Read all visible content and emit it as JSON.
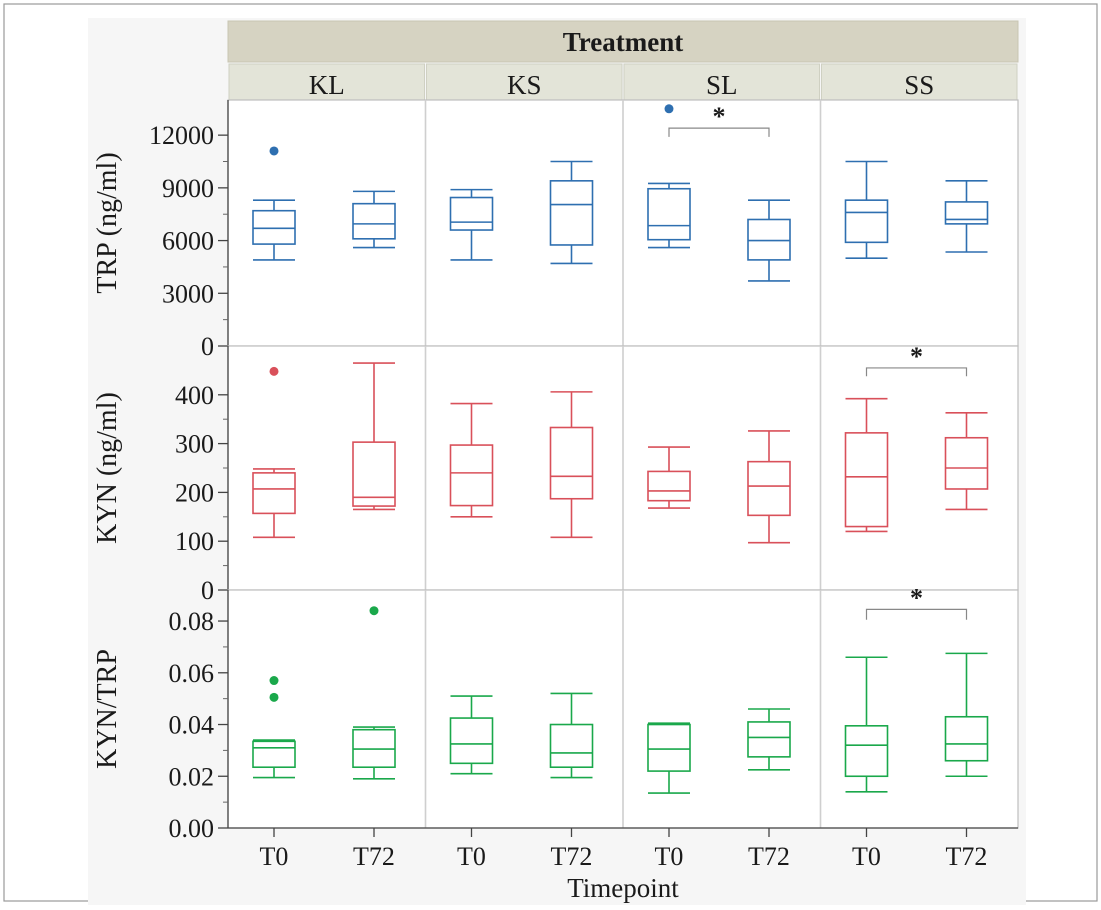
{
  "header": {
    "title": "Treatment"
  },
  "x_axis_title": "Timepoint",
  "colors": {
    "TRP": "#2e6fb0",
    "KYN": "#d9505a",
    "KYN/TRP": "#1aa84b"
  },
  "chart_data": {
    "type": "boxplot",
    "facet_label": "Treatment",
    "xlabel": "Timepoint",
    "treatments": [
      "KL",
      "KS",
      "SL",
      "SS"
    ],
    "timepoints": [
      "T0",
      "T72"
    ],
    "panels": [
      {
        "ylabel": "TRP (ng/ml)",
        "ylim": [
          0,
          14000
        ],
        "yticks": [
          0,
          3000,
          6000,
          9000,
          12000
        ],
        "ytick_labels": [
          "0",
          "3000",
          "6000",
          "9000",
          "12000"
        ],
        "boxes": [
          {
            "treatment": "KL",
            "timepoint": "T0",
            "min": 4900,
            "q1": 5800,
            "median": 6700,
            "q3": 7700,
            "max": 8300,
            "outliers": [
              11100
            ]
          },
          {
            "treatment": "KL",
            "timepoint": "T72",
            "min": 5600,
            "q1": 6100,
            "median": 6950,
            "q3": 8100,
            "max": 8800,
            "outliers": []
          },
          {
            "treatment": "KS",
            "timepoint": "T0",
            "min": 4900,
            "q1": 6600,
            "median": 7050,
            "q3": 8450,
            "max": 8900,
            "outliers": []
          },
          {
            "treatment": "KS",
            "timepoint": "T72",
            "min": 4700,
            "q1": 5750,
            "median": 8050,
            "q3": 9400,
            "max": 10500,
            "outliers": []
          },
          {
            "treatment": "SL",
            "timepoint": "T0",
            "min": 5600,
            "q1": 6050,
            "median": 6850,
            "q3": 8950,
            "max": 9250,
            "outliers": [
              13500
            ]
          },
          {
            "treatment": "SL",
            "timepoint": "T72",
            "min": 3700,
            "q1": 4900,
            "median": 6000,
            "q3": 7200,
            "max": 8300,
            "outliers": []
          },
          {
            "treatment": "SS",
            "timepoint": "T0",
            "min": 5000,
            "q1": 5900,
            "median": 7600,
            "q3": 8300,
            "max": 10500,
            "outliers": []
          },
          {
            "treatment": "SS",
            "timepoint": "T72",
            "min": 5350,
            "q1": 6950,
            "median": 7200,
            "q3": 8200,
            "max": 9400,
            "outliers": []
          }
        ],
        "significance": [
          {
            "treatment": "SL",
            "label": "*",
            "y": 12400,
            "y_tick": 11900
          }
        ]
      },
      {
        "ylabel": "KYN (ng/ml)",
        "ylim": [
          0,
          500
        ],
        "yticks": [
          0,
          100,
          200,
          300,
          400
        ],
        "ytick_labels": [
          "0",
          "100",
          "200",
          "300",
          "400"
        ],
        "boxes": [
          {
            "treatment": "KL",
            "timepoint": "T0",
            "min": 108,
            "q1": 157,
            "median": 207,
            "q3": 240,
            "max": 248,
            "outliers": [
              448
            ]
          },
          {
            "treatment": "KL",
            "timepoint": "T72",
            "min": 165,
            "q1": 172,
            "median": 190,
            "q3": 303,
            "max": 465,
            "outliers": []
          },
          {
            "treatment": "KS",
            "timepoint": "T0",
            "min": 150,
            "q1": 173,
            "median": 240,
            "q3": 297,
            "max": 382,
            "outliers": []
          },
          {
            "treatment": "KS",
            "timepoint": "T72",
            "min": 108,
            "q1": 187,
            "median": 233,
            "q3": 333,
            "max": 406,
            "outliers": []
          },
          {
            "treatment": "SL",
            "timepoint": "T0",
            "min": 168,
            "q1": 183,
            "median": 203,
            "q3": 243,
            "max": 293,
            "outliers": []
          },
          {
            "treatment": "SL",
            "timepoint": "T72",
            "min": 97,
            "q1": 153,
            "median": 213,
            "q3": 263,
            "max": 326,
            "outliers": []
          },
          {
            "treatment": "SS",
            "timepoint": "T0",
            "min": 120,
            "q1": 130,
            "median": 232,
            "q3": 322,
            "max": 392,
            "outliers": []
          },
          {
            "treatment": "SS",
            "timepoint": "T72",
            "min": 165,
            "q1": 207,
            "median": 250,
            "q3": 312,
            "max": 363,
            "outliers": []
          }
        ],
        "significance": [
          {
            "treatment": "SS",
            "label": "*",
            "y": 455,
            "y_tick": 438
          }
        ]
      },
      {
        "ylabel": "KYN/TRP",
        "ylim": [
          0,
          0.092
        ],
        "yticks": [
          0,
          0.02,
          0.04,
          0.06,
          0.08
        ],
        "ytick_labels": [
          "0.00",
          "0.02",
          "0.04",
          "0.06",
          "0.08"
        ],
        "boxes": [
          {
            "treatment": "KL",
            "timepoint": "T0",
            "min": 0.0195,
            "q1": 0.0235,
            "median": 0.031,
            "q3": 0.0335,
            "max": 0.034,
            "outliers": [
              0.057,
              0.0505
            ]
          },
          {
            "treatment": "KL",
            "timepoint": "T72",
            "min": 0.019,
            "q1": 0.0235,
            "median": 0.0305,
            "q3": 0.038,
            "max": 0.039,
            "outliers": [
              0.084
            ]
          },
          {
            "treatment": "KS",
            "timepoint": "T0",
            "min": 0.021,
            "q1": 0.025,
            "median": 0.0325,
            "q3": 0.0425,
            "max": 0.051,
            "outliers": []
          },
          {
            "treatment": "KS",
            "timepoint": "T72",
            "min": 0.0195,
            "q1": 0.0235,
            "median": 0.029,
            "q3": 0.04,
            "max": 0.052,
            "outliers": []
          },
          {
            "treatment": "SL",
            "timepoint": "T0",
            "min": 0.0135,
            "q1": 0.022,
            "median": 0.0305,
            "q3": 0.04,
            "max": 0.0405,
            "outliers": []
          },
          {
            "treatment": "SL",
            "timepoint": "T72",
            "min": 0.0225,
            "q1": 0.0275,
            "median": 0.035,
            "q3": 0.041,
            "max": 0.046,
            "outliers": []
          },
          {
            "treatment": "SS",
            "timepoint": "T0",
            "min": 0.014,
            "q1": 0.02,
            "median": 0.032,
            "q3": 0.0395,
            "max": 0.066,
            "outliers": []
          },
          {
            "treatment": "SS",
            "timepoint": "T72",
            "min": 0.02,
            "q1": 0.026,
            "median": 0.0325,
            "q3": 0.043,
            "max": 0.0675,
            "outliers": []
          }
        ],
        "significance": [
          {
            "treatment": "SS",
            "label": "*",
            "y": 0.0845,
            "y_tick": 0.0805
          }
        ]
      }
    ]
  }
}
